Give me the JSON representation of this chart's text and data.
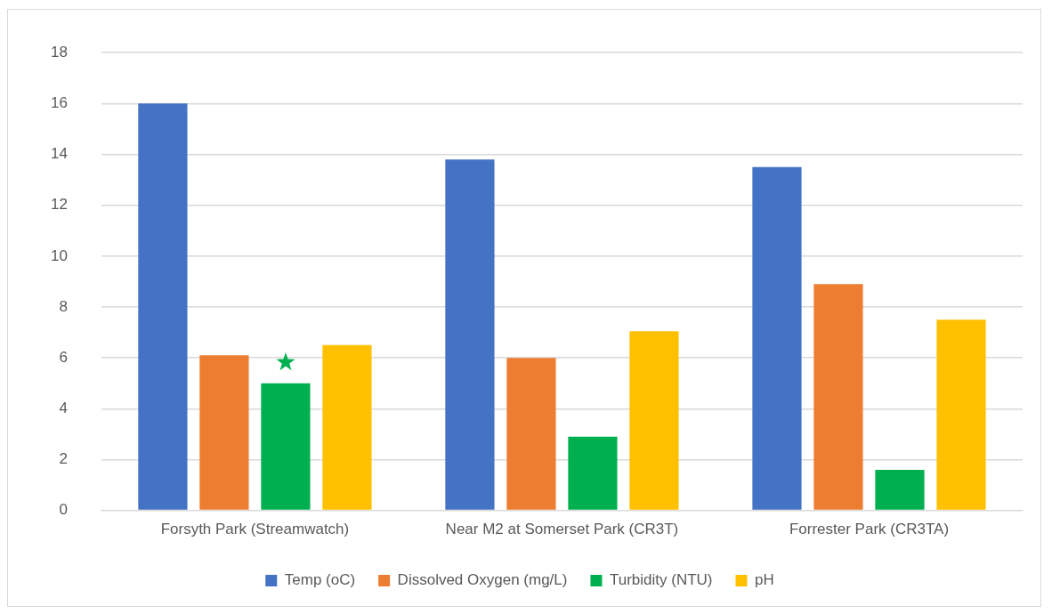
{
  "chart_data": {
    "type": "bar",
    "categories": [
      "Forsyth Park (Streamwatch)",
      "Near M2 at Somerset Park (CR3T)",
      "Forrester Park (CR3TA)"
    ],
    "series": [
      {
        "name": "Temp (oC)",
        "color": "#4472c4",
        "values": [
          16,
          13.8,
          13.5
        ]
      },
      {
        "name": "Dissolved Oxygen (mg/L)",
        "color": "#ed7d31",
        "values": [
          6.1,
          6.0,
          8.9
        ]
      },
      {
        "name": "Turbidity (NTU)",
        "color": "#00b050",
        "values": [
          5.0,
          2.9,
          1.6
        ]
      },
      {
        "name": "pH",
        "color": "#ffc000",
        "values": [
          6.5,
          7.05,
          7.5
        ]
      }
    ],
    "ylim": [
      0,
      18
    ],
    "yticks": [
      0,
      2,
      4,
      6,
      8,
      10,
      12,
      14,
      16,
      18
    ],
    "grid": "y",
    "legend": "bottom"
  }
}
